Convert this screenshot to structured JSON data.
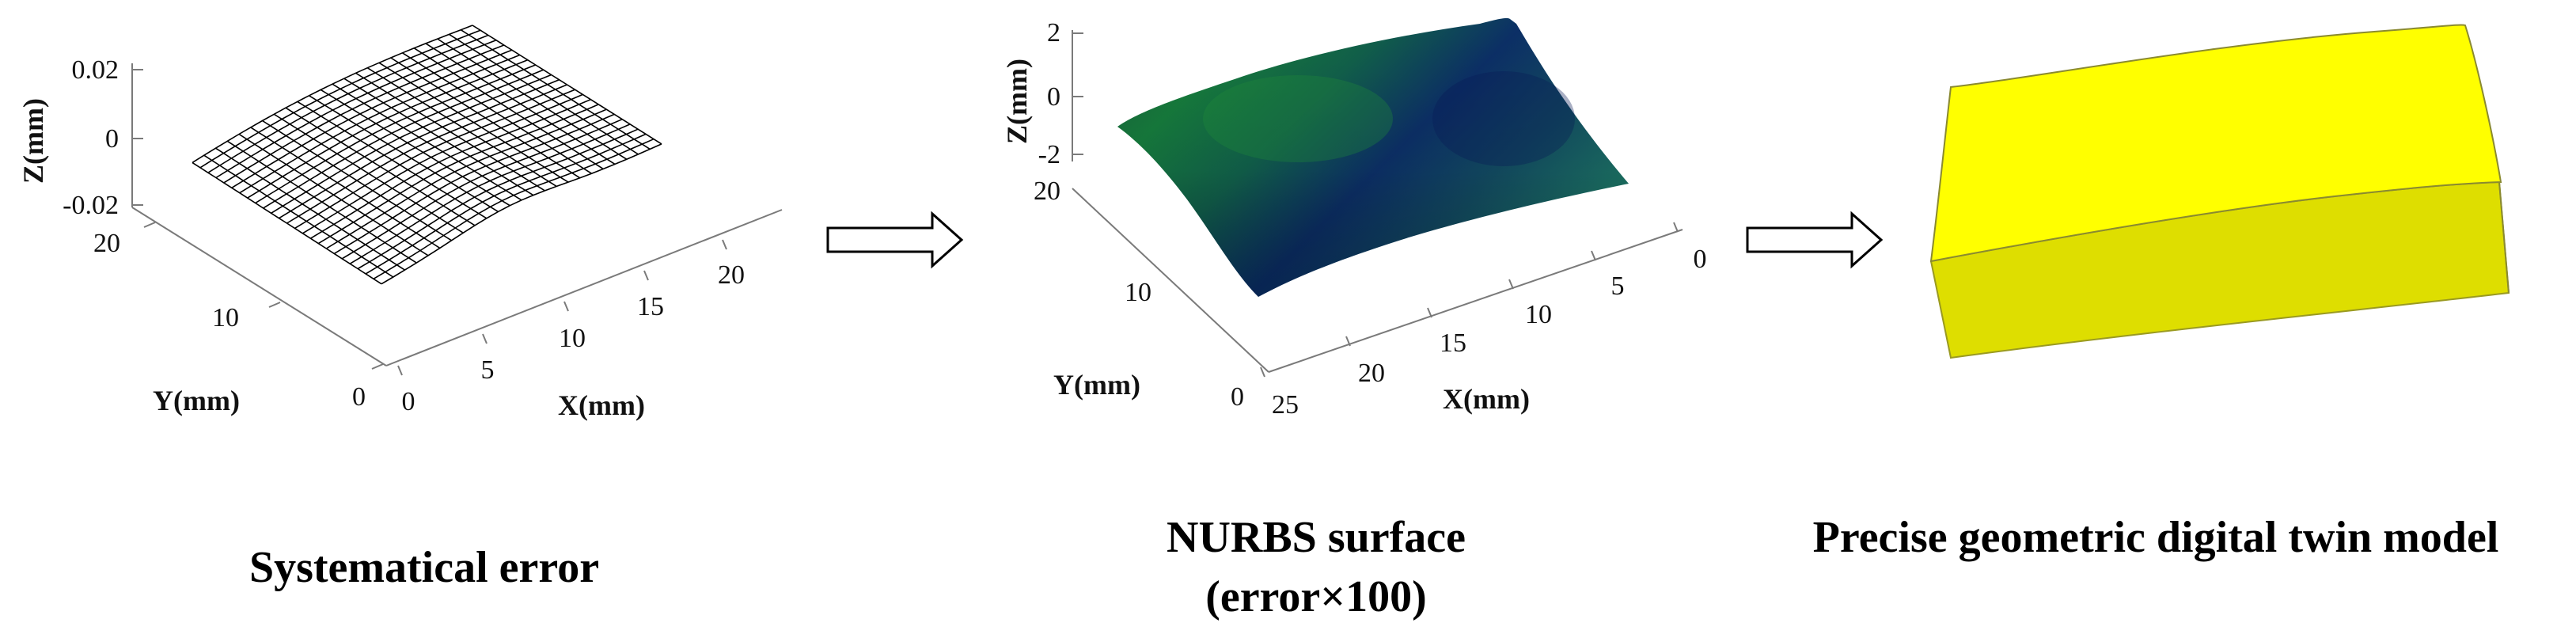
{
  "panels": [
    {
      "id": "systematical-error",
      "caption": [
        "Systematical error"
      ],
      "zlabel": "Z(mm)",
      "ylabel": "Y(mm)",
      "xlabel": "X(mm)",
      "zticks": [
        "0.02",
        "0",
        "-0.02"
      ],
      "yticks": [
        "20",
        "10",
        "0"
      ],
      "xticks": [
        "0",
        "5",
        "10",
        "15",
        "20"
      ]
    },
    {
      "id": "nurbs-surface",
      "caption": [
        "NURBS surface",
        "(error×100)"
      ],
      "zlabel": "Z(mm)",
      "ylabel": "Y(mm)",
      "xlabel": "X(mm)",
      "zticks": [
        "2",
        "0",
        "-2"
      ],
      "yticks": [
        "20",
        "10",
        "0"
      ],
      "xticks": [
        "25",
        "20",
        "15",
        "10",
        "5",
        "0"
      ]
    },
    {
      "id": "digital-twin-model",
      "caption": [
        "Precise geometric digital twin model"
      ]
    }
  ],
  "colors": {
    "mesh": "#000000",
    "axis": "#7a7a7a",
    "surface_dark": "#0b1f4a",
    "surface_green": "#177a3a",
    "model_top": "#ffff00",
    "model_side": "#dede00",
    "arrow": "#000000"
  },
  "arrows": [
    "arrow-right-icon",
    "arrow-right-icon"
  ]
}
